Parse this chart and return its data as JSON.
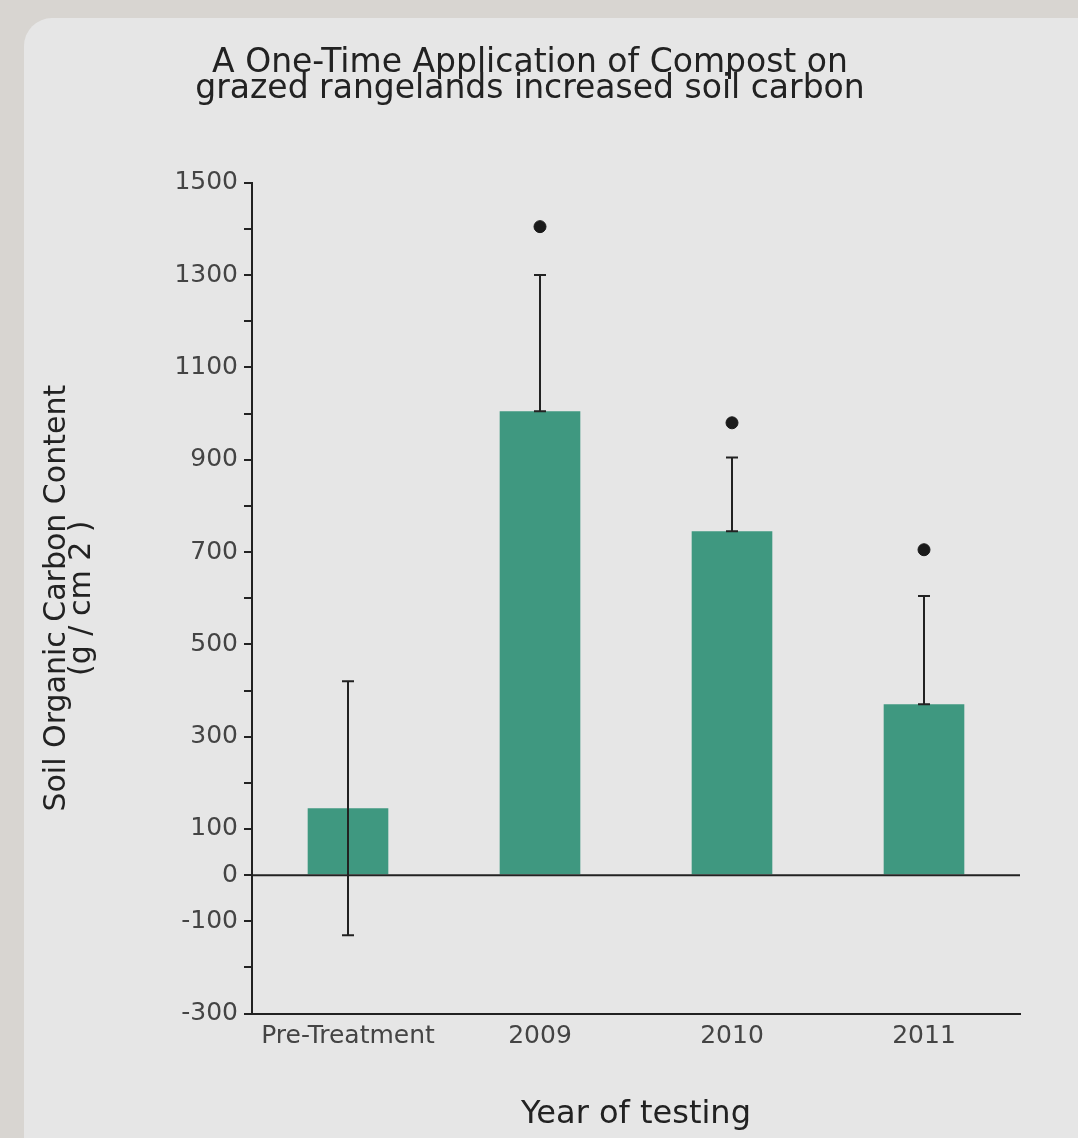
{
  "chart_data": {
    "type": "bar",
    "title": "A One-Time Application of Compost on\ngrazed rangelands increased soil carbon",
    "xlabel": "Year of testing",
    "ylabel": "Soil Organic Carbon Content\n(g / cm 2 )",
    "categories": [
      "Pre-Treatment",
      "2009",
      "2010",
      "2011"
    ],
    "series": [
      {
        "color": "#3f9880",
        "values": [
          145,
          1005,
          745,
          370
        ],
        "errors": [
          [
            -130,
            420
          ],
          [
            1005,
            1300
          ],
          [
            745,
            905
          ],
          [
            370,
            605
          ]
        ]
      },
      {
        "type": "scatter",
        "color": "#1a1a1a",
        "marker": "circle",
        "values": [
          null,
          1405,
          980,
          705
        ]
      }
    ],
    "ylim": [
      -300,
      1500
    ],
    "yticks": [
      -300,
      {
        "value": -200,
        "label": null
      },
      -100,
      0,
      100,
      {
        "value": 200,
        "label": null
      },
      300,
      {
        "value": 400,
        "label": null
      },
      500,
      {
        "value": 600,
        "label": null
      },
      700,
      {
        "value": 800,
        "label": null
      },
      900,
      {
        "value": 1000,
        "label": null
      },
      1100,
      {
        "value": 1200,
        "label": null
      },
      1300,
      {
        "value": 1400,
        "label": null
      },
      1500
    ],
    "ref_lines": [
      {
        "axis": "y",
        "value": 0,
        "color": "#222222"
      }
    ],
    "grid": false,
    "legend": false
  }
}
